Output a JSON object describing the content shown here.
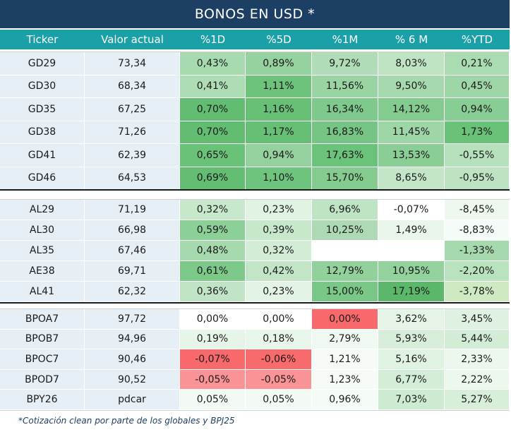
{
  "title": "BONOS EN USD *",
  "columns": [
    "Ticker",
    "Valor actual",
    "%1D",
    "%5D",
    "%1M",
    "% 6 M",
    "%YTD"
  ],
  "groups": [
    [
      [
        "GD29",
        "73,34",
        "0,43%",
        "0,89%",
        "9,72%",
        "8,03%",
        "0,21%"
      ],
      [
        "GD30",
        "68,34",
        "0,41%",
        "1,11%",
        "11,56%",
        "9,50%",
        "0,45%"
      ],
      [
        "GD35",
        "67,25",
        "0,70%",
        "1,16%",
        "16,34%",
        "14,12%",
        "0,94%"
      ],
      [
        "GD38",
        "71,26",
        "0,70%",
        "1,17%",
        "16,83%",
        "11,45%",
        "1,73%"
      ],
      [
        "GD41",
        "62,39",
        "0,65%",
        "0,94%",
        "17,63%",
        "13,53%",
        "-0,55%"
      ],
      [
        "GD46",
        "64,53",
        "0,69%",
        "1,10%",
        "15,70%",
        "8,65%",
        "-0,95%"
      ]
    ],
    [
      [
        "AL29",
        "71,19",
        "0,32%",
        "0,23%",
        "6,96%",
        "-0,07%",
        "-8,45%"
      ],
      [
        "AL30",
        "66,98",
        "0,59%",
        "0,39%",
        "10,25%",
        "1,49%",
        "-8,83%"
      ],
      [
        "AL35",
        "67,46",
        "0,48%",
        "0,32%",
        "",
        "",
        "-1,33%"
      ],
      [
        "AE38",
        "69,71",
        "0,61%",
        "0,42%",
        "12,79%",
        "10,95%",
        "-2,20%"
      ],
      [
        "AL41",
        "62,32",
        "0,36%",
        "0,23%",
        "15,00%",
        "17,19%",
        "-3,78%"
      ]
    ],
    [
      [
        "BPOA7",
        "97,72",
        "0,00%",
        "0,00%",
        "0,00%",
        "3,62%",
        "3,45%"
      ],
      [
        "BPOB7",
        "94,96",
        "0,19%",
        "0,18%",
        "2,79%",
        "5,93%",
        "5,44%"
      ],
      [
        "BPOC7",
        "90,46",
        "-0,07%",
        "-0,06%",
        "1,21%",
        "5,16%",
        "2,33%"
      ],
      [
        "BPOD7",
        "90,52",
        "-0,05%",
        "-0,05%",
        "1,23%",
        "6,77%",
        "2,22%"
      ],
      [
        "BPY26",
        "pdcar",
        "0,05%",
        "0,05%",
        "0,96%",
        "7,03%",
        "5,27%"
      ]
    ]
  ],
  "colors": {
    "group1": [
      [
        "#a8dab0",
        "#96d29f",
        "#b0ddb7",
        "#bfe4c3",
        "#aadbb1"
      ],
      [
        "#aedcb4",
        "#6dc27c",
        "#9ad4a3",
        "#a7d9ae",
        "#9fd6a7"
      ],
      [
        "#62bd72",
        "#68c077",
        "#7ec98b",
        "#84cb90",
        "#88cd94"
      ],
      [
        "#62bd72",
        "#66bf75",
        "#76c584",
        "#9fd6a7",
        "#6ac279"
      ],
      [
        "#6ac279",
        "#94d19e",
        "#6bc27a",
        "#8acd95",
        "#b7e1bd"
      ],
      [
        "#63be73",
        "#6ec37d",
        "#83cb8f",
        "#c2e6c7",
        "#bde3c2"
      ]
    ],
    "group2": [
      [
        "#c8e8cc",
        "#e0f2e2",
        "#bfe4c4",
        "#ffffff",
        "#eef8ef"
      ],
      [
        "#8ccf97",
        "#c8e8cc",
        "#add9b4",
        "#eaf6ec",
        "#f5fbf6"
      ],
      [
        "#a6d9ad",
        "#d3ecd6",
        "#ffffff",
        "#ffffff",
        "#a7d9ae"
      ],
      [
        "#7dc98a",
        "#c2e5c7",
        "#92d19c",
        "#93d19d",
        "#b9e2bf"
      ],
      [
        "#c0e4c5",
        "#e3f3e5",
        "#7ac887",
        "#5bb86a",
        "#cfeac3"
      ]
    ],
    "group3": [
      [
        "#ffffff",
        "#ffffff",
        "#f8696b",
        "#e7f5e9",
        "#dff1e1"
      ],
      [
        "#e7f5e9",
        "#e8f5ea",
        "#f0f9f1",
        "#d8eedb",
        "#d2ecd5"
      ],
      [
        "#f8696b",
        "#f86b6d",
        "#f7fbf8",
        "#e0f2e2",
        "#ecf7ee"
      ],
      [
        "#f99396",
        "#f99396",
        "#f7fbf8",
        "#d4edd7",
        "#ecf7ee"
      ],
      [
        "#f3faf4",
        "#f3faf4",
        "#f5fbf6",
        "#cdebd1",
        "#d7eed9"
      ]
    ]
  },
  "footnote": "*Cotización clean por parte de los globales y BPJ25"
}
